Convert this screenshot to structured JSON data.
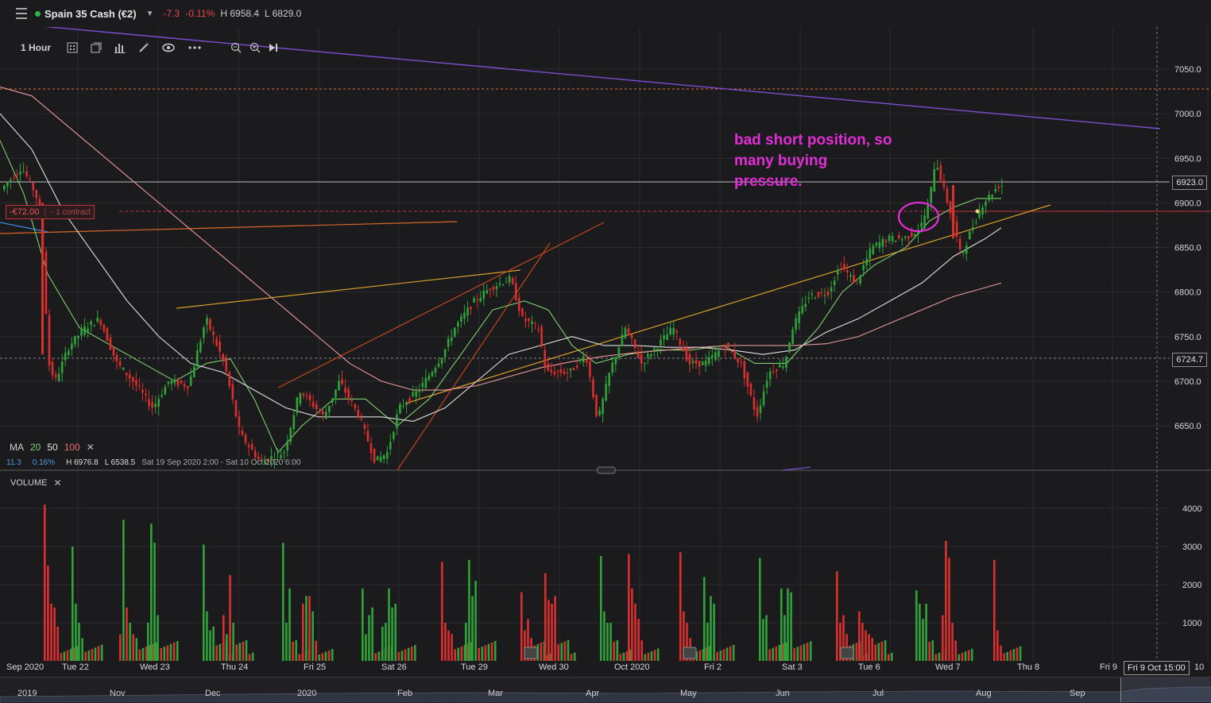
{
  "header": {
    "instrument": "Spain 35 Cash (€2)",
    "change": "-7.3",
    "change_pct": "-0.11%",
    "high": "H 6958.4",
    "low": "L 6829.0"
  },
  "toolbar": {
    "timeframe": "1 Hour",
    "icons": [
      "chart-type-icon",
      "layout-icon",
      "indicators-icon",
      "draw-icon",
      "eye-icon",
      "more-icon",
      "zoom-out-icon",
      "zoom-in-icon",
      "skip-to-end-icon"
    ]
  },
  "position": {
    "pnl": "-€72.00",
    "size": "- 1 contract"
  },
  "annotation": "bad short position, so many buying pressure.",
  "ma_legend": {
    "label": "MA",
    "p1": "20",
    "p2": "50",
    "p3": "100"
  },
  "info": {
    "value": "11.3",
    "pct": "0.16%",
    "high": "H 6976.8",
    "low": "L 6538.5",
    "range": "Sat 19 Sep 2020 2:00 - Sat 10 Oct 2020 6:00"
  },
  "volume": {
    "label": "VOLUME",
    "ticks": [
      "4000",
      "3000",
      "2000",
      "1000"
    ]
  },
  "price_axis": {
    "ticks": [
      "7050.0",
      "7000.0",
      "6950.0",
      "6900.0",
      "6850.0",
      "6800.0",
      "6750.0",
      "6700.0",
      "6650.0"
    ]
  },
  "price_badges": {
    "current": "6923.0",
    "crosshair": "6724.7"
  },
  "x_axis": [
    {
      "label": "Sep 2020",
      "x": 8
    },
    {
      "label": "Tue 22",
      "x": 78
    },
    {
      "label": "Wed 23",
      "x": 176
    },
    {
      "label": "Thu 24",
      "x": 278
    },
    {
      "label": "Fri 25",
      "x": 382
    },
    {
      "label": "Sat 26",
      "x": 480
    },
    {
      "label": "Tue 29",
      "x": 580
    },
    {
      "label": "Wed 30",
      "x": 678
    },
    {
      "label": "Oct 2020",
      "x": 773
    },
    {
      "label": "Fri 2",
      "x": 886
    },
    {
      "label": "Sat 3",
      "x": 984
    },
    {
      "label": "Tue 6",
      "x": 1080
    },
    {
      "label": "Wed 7",
      "x": 1177
    },
    {
      "label": "Thu 8",
      "x": 1280
    },
    {
      "label": "Fri 9",
      "x": 1384
    }
  ],
  "date_badge": "Fri 9 Oct 15:00",
  "date_badge_tail": "10",
  "navigator": [
    {
      "label": "2019",
      "x": 22
    },
    {
      "label": "Nov",
      "x": 138
    },
    {
      "label": "Dec",
      "x": 258
    },
    {
      "label": "2020",
      "x": 374
    },
    {
      "label": "Feb",
      "x": 500
    },
    {
      "label": "Mar",
      "x": 614
    },
    {
      "label": "Apr",
      "x": 737
    },
    {
      "label": "May",
      "x": 856
    },
    {
      "label": "Jun",
      "x": 976
    },
    {
      "label": "Jul",
      "x": 1098
    },
    {
      "label": "Aug",
      "x": 1228
    },
    {
      "label": "Sep",
      "x": 1346
    }
  ],
  "colors": {
    "up": "#2fa33a",
    "down": "#d9302f",
    "ma20": "#7fcf6f",
    "ma50": "#e0e0e0",
    "ma100": "#e89a9a",
    "annotation": "#e22ed6"
  }
}
